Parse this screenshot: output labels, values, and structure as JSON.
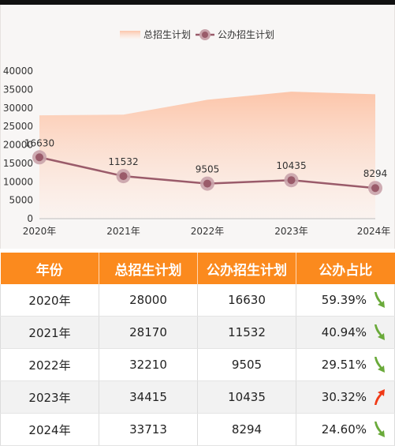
{
  "chart_data": {
    "type": "area+line",
    "legend": {
      "position": "top-center",
      "items": [
        "总招生计划",
        "公办招生计划"
      ]
    },
    "categories": [
      "2020年",
      "2021年",
      "2022年",
      "2023年",
      "2024年"
    ],
    "series": [
      {
        "name": "总招生计划",
        "kind": "area",
        "values": [
          28000,
          28170,
          32210,
          34415,
          33713
        ],
        "color": "#fcc8ad"
      },
      {
        "name": "公办招生计划",
        "kind": "line",
        "values": [
          16630,
          11532,
          9505,
          10435,
          8294
        ],
        "color": "#9a5b6a",
        "labels": [
          "16630",
          "11532",
          "9505",
          "10435",
          "8294"
        ]
      }
    ],
    "ylim": [
      0,
      40000
    ],
    "yticks": [
      "0",
      "5000",
      "10000",
      "15000",
      "20000",
      "25000",
      "30000",
      "35000",
      "40000"
    ],
    "grid": false
  },
  "table": {
    "headers": [
      "年份",
      "总招生计划",
      "公办招生计划",
      "公办占比"
    ],
    "rows": [
      {
        "year": "2020年",
        "total": "28000",
        "public": "16630",
        "ratio": "59.39%",
        "trend": "down"
      },
      {
        "year": "2021年",
        "total": "28170",
        "public": "11532",
        "ratio": "40.94%",
        "trend": "down"
      },
      {
        "year": "2022年",
        "total": "32210",
        "public": "9505",
        "ratio": "29.51%",
        "trend": "down"
      },
      {
        "year": "2023年",
        "total": "34415",
        "public": "10435",
        "ratio": "30.32%",
        "trend": "up"
      },
      {
        "year": "2024年",
        "total": "33713",
        "public": "8294",
        "ratio": "24.60%",
        "trend": "down"
      }
    ]
  },
  "colors": {
    "header_bg": "#fb8a1e",
    "up_arrow": "#f03a17",
    "down_arrow": "#6aaa3a"
  }
}
